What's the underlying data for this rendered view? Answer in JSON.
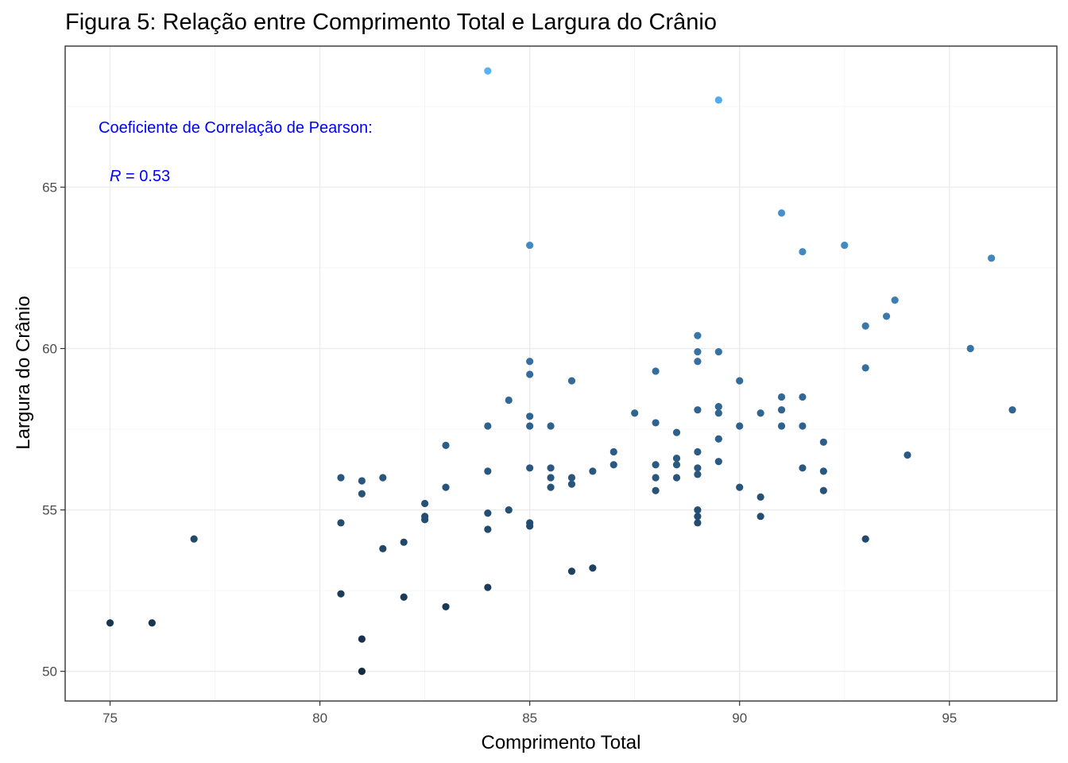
{
  "chart_data": {
    "type": "scatter",
    "title": "Figura 5: Relação entre Comprimento Total e Largura do Crânio",
    "xlabel": "Comprimento Total",
    "ylabel": "Largura do Crânio",
    "xlim": [
      73.93,
      97.56
    ],
    "ylim": [
      49.08,
      69.37
    ],
    "xticks": [
      75,
      80,
      85,
      90,
      95
    ],
    "yticks": [
      50,
      55,
      60,
      65
    ],
    "grid": true,
    "legend": "none",
    "color_scale": {
      "low": "#132b43",
      "high": "#56b1f7",
      "mapped_to": "y"
    },
    "annotation": {
      "line1": "Coeficiente de Correlação de Pearson:",
      "r_symbol": "R",
      "r_value": " = 0.53",
      "color": "#0000ff"
    },
    "points": [
      {
        "x": 75,
        "y": 51.5
      },
      {
        "x": 76,
        "y": 51.5
      },
      {
        "x": 77,
        "y": 54.1
      },
      {
        "x": 80.5,
        "y": 56.0
      },
      {
        "x": 80.5,
        "y": 54.6
      },
      {
        "x": 80.5,
        "y": 52.4
      },
      {
        "x": 81,
        "y": 55.9
      },
      {
        "x": 81,
        "y": 55.5
      },
      {
        "x": 81,
        "y": 51.0
      },
      {
        "x": 81,
        "y": 50.0
      },
      {
        "x": 81.5,
        "y": 56.0
      },
      {
        "x": 81.5,
        "y": 53.8
      },
      {
        "x": 82,
        "y": 54.0
      },
      {
        "x": 82,
        "y": 52.3
      },
      {
        "x": 82.5,
        "y": 55.2
      },
      {
        "x": 82.5,
        "y": 54.8
      },
      {
        "x": 82.5,
        "y": 54.7
      },
      {
        "x": 83,
        "y": 57.0
      },
      {
        "x": 83,
        "y": 55.7
      },
      {
        "x": 83,
        "y": 52.0
      },
      {
        "x": 84,
        "y": 68.6
      },
      {
        "x": 84,
        "y": 57.6
      },
      {
        "x": 84,
        "y": 56.2
      },
      {
        "x": 84,
        "y": 54.9
      },
      {
        "x": 84,
        "y": 54.4
      },
      {
        "x": 84,
        "y": 52.6
      },
      {
        "x": 84.5,
        "y": 58.4
      },
      {
        "x": 84.5,
        "y": 55.0
      },
      {
        "x": 85,
        "y": 63.2
      },
      {
        "x": 85,
        "y": 59.6
      },
      {
        "x": 85,
        "y": 59.2
      },
      {
        "x": 85,
        "y": 57.9
      },
      {
        "x": 85,
        "y": 57.6
      },
      {
        "x": 85,
        "y": 56.3
      },
      {
        "x": 85,
        "y": 54.6
      },
      {
        "x": 85,
        "y": 54.5
      },
      {
        "x": 85.5,
        "y": 57.6
      },
      {
        "x": 85.5,
        "y": 56.3
      },
      {
        "x": 85.5,
        "y": 56.0
      },
      {
        "x": 85.5,
        "y": 55.7
      },
      {
        "x": 86,
        "y": 59.0
      },
      {
        "x": 86,
        "y": 56.0
      },
      {
        "x": 86,
        "y": 55.8
      },
      {
        "x": 86,
        "y": 53.1
      },
      {
        "x": 86.5,
        "y": 56.2
      },
      {
        "x": 86.5,
        "y": 53.2
      },
      {
        "x": 87,
        "y": 56.8
      },
      {
        "x": 87,
        "y": 56.4
      },
      {
        "x": 87.5,
        "y": 58.0
      },
      {
        "x": 88,
        "y": 59.3
      },
      {
        "x": 88,
        "y": 57.7
      },
      {
        "x": 88,
        "y": 56.4
      },
      {
        "x": 88,
        "y": 56.0
      },
      {
        "x": 88,
        "y": 55.6
      },
      {
        "x": 88.5,
        "y": 57.4
      },
      {
        "x": 88.5,
        "y": 56.6
      },
      {
        "x": 88.5,
        "y": 56.4
      },
      {
        "x": 88.5,
        "y": 56.0
      },
      {
        "x": 89,
        "y": 60.4
      },
      {
        "x": 89,
        "y": 59.9
      },
      {
        "x": 89,
        "y": 59.6
      },
      {
        "x": 89,
        "y": 58.1
      },
      {
        "x": 89,
        "y": 56.8
      },
      {
        "x": 89,
        "y": 56.3
      },
      {
        "x": 89,
        "y": 56.1
      },
      {
        "x": 89,
        "y": 55.0
      },
      {
        "x": 89,
        "y": 54.8
      },
      {
        "x": 89,
        "y": 54.6
      },
      {
        "x": 89.5,
        "y": 67.7
      },
      {
        "x": 89.5,
        "y": 59.9
      },
      {
        "x": 89.5,
        "y": 58.2
      },
      {
        "x": 89.5,
        "y": 58.0
      },
      {
        "x": 89.5,
        "y": 57.2
      },
      {
        "x": 89.5,
        "y": 56.5
      },
      {
        "x": 90,
        "y": 59.0
      },
      {
        "x": 90,
        "y": 57.6
      },
      {
        "x": 90,
        "y": 55.7
      },
      {
        "x": 90.5,
        "y": 58.0
      },
      {
        "x": 90.5,
        "y": 55.4
      },
      {
        "x": 90.5,
        "y": 54.8
      },
      {
        "x": 91,
        "y": 64.2
      },
      {
        "x": 91,
        "y": 58.5
      },
      {
        "x": 91,
        "y": 58.1
      },
      {
        "x": 91,
        "y": 57.6
      },
      {
        "x": 91.5,
        "y": 63.0
      },
      {
        "x": 91.5,
        "y": 58.5
      },
      {
        "x": 91.5,
        "y": 57.6
      },
      {
        "x": 91.5,
        "y": 56.3
      },
      {
        "x": 92,
        "y": 57.1
      },
      {
        "x": 92,
        "y": 56.2
      },
      {
        "x": 92,
        "y": 55.6
      },
      {
        "x": 92.5,
        "y": 63.2
      },
      {
        "x": 93,
        "y": 60.7
      },
      {
        "x": 93,
        "y": 59.4
      },
      {
        "x": 93,
        "y": 54.1
      },
      {
        "x": 93.5,
        "y": 61.0
      },
      {
        "x": 93.7,
        "y": 61.5
      },
      {
        "x": 94,
        "y": 56.7
      },
      {
        "x": 95.5,
        "y": 60.0
      },
      {
        "x": 96,
        "y": 62.8
      },
      {
        "x": 96.5,
        "y": 58.1
      }
    ]
  }
}
